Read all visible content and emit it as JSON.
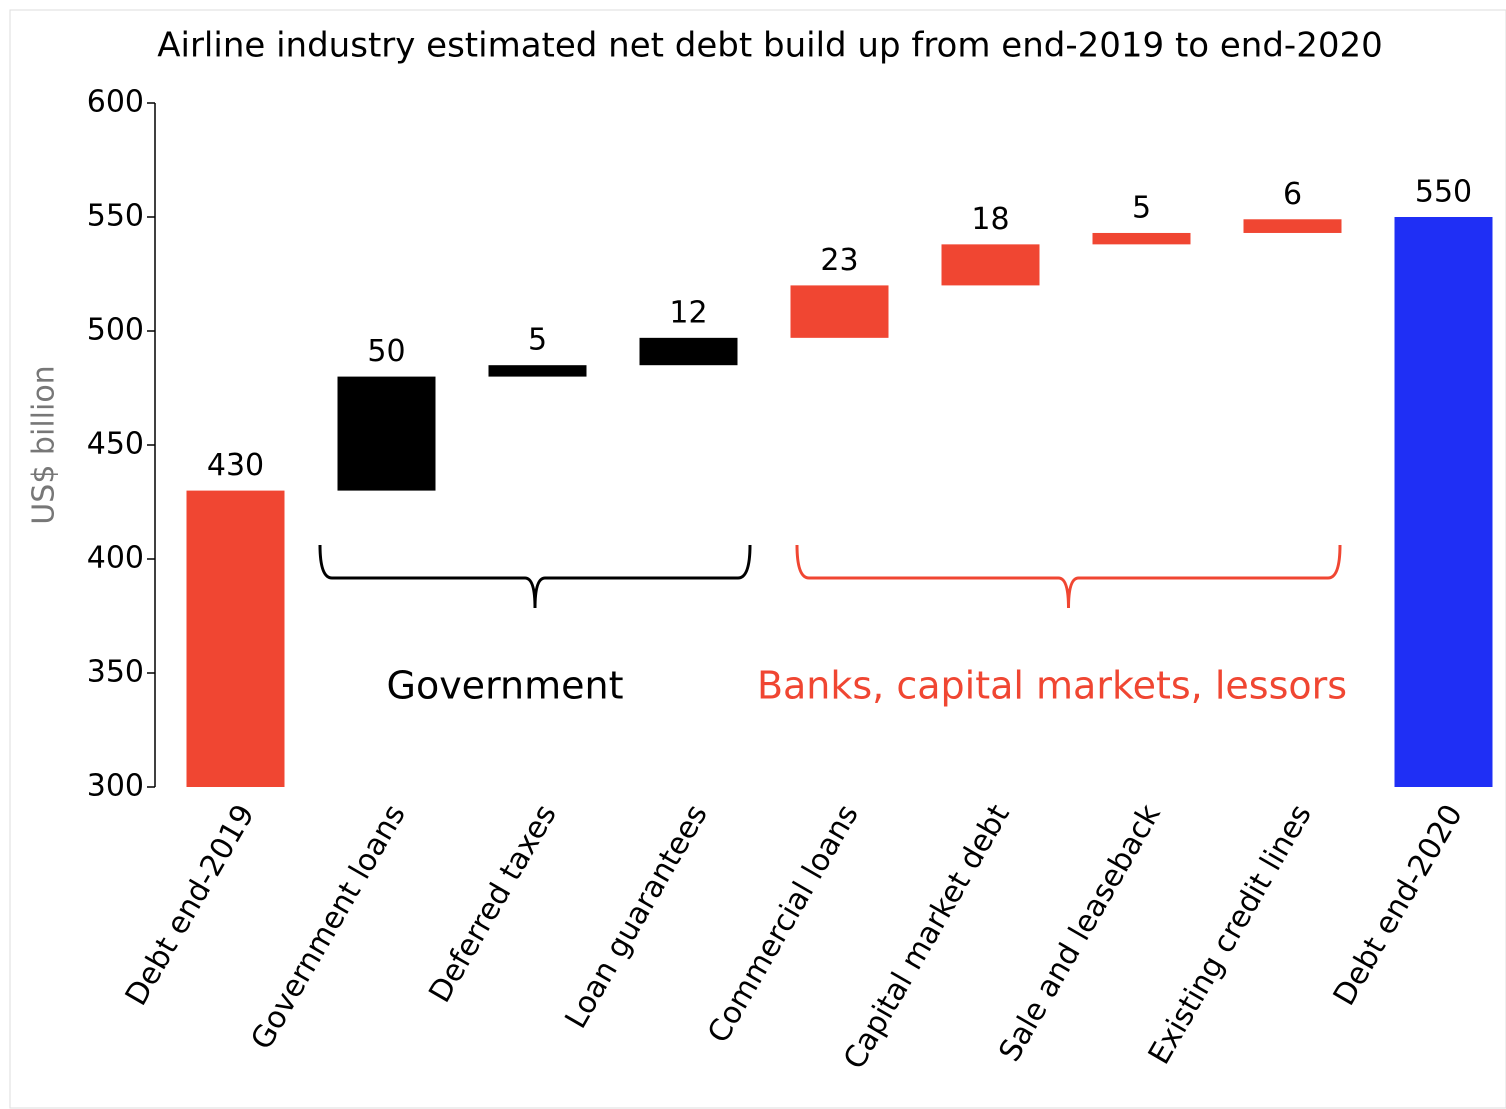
{
  "chart_data": {
    "type": "waterfall",
    "title": "Airline industry estimated net debt build up from end-2019 to end-2020",
    "y_label": "US$ billion",
    "categories": [
      "Debt  end-2019",
      "Government loans",
      "Deferred taxes",
      "Loan guarantees",
      "Commercial loans",
      "Capital market debt",
      "Sale and leaseback",
      "Existing credit lines",
      "Debt  end-2020"
    ],
    "values": [
      430,
      50,
      5,
      12,
      23,
      18,
      5,
      6,
      550
    ],
    "measures": [
      "absolute",
      "relative",
      "relative",
      "relative",
      "relative",
      "relative",
      "relative",
      "relative",
      "total"
    ],
    "colors": [
      "#f04632",
      "#000000",
      "#000000",
      "#000000",
      "#f04632",
      "#f04632",
      "#f04632",
      "#f04632",
      "#1f2ff5"
    ],
    "ylim": [
      300,
      600
    ],
    "yticks": [
      300,
      350,
      400,
      450,
      500,
      550,
      600
    ],
    "annotations": [
      {
        "text": "Government",
        "color": "#000000"
      },
      {
        "text": "Banks, capital markets, lessors",
        "color": "#f04632"
      }
    ]
  }
}
